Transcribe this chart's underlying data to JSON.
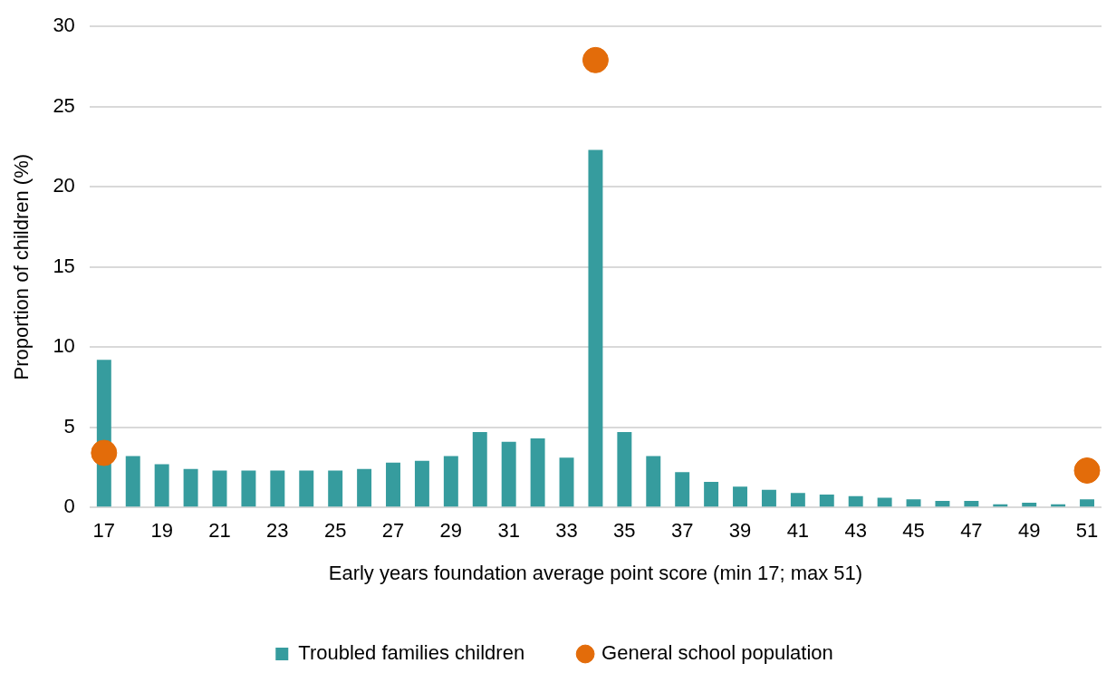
{
  "chart_data": {
    "type": "bar",
    "xlabel": "Early years foundation average point score (min 17; max 51)",
    "ylabel": "Proportion of children (%)",
    "categories": [
      "17",
      null,
      "19",
      null,
      "21",
      null,
      "23",
      null,
      "25",
      null,
      "27",
      null,
      "29",
      null,
      "31",
      null,
      "33",
      null,
      "35",
      null,
      "37",
      null,
      "39",
      null,
      "41",
      null,
      "43",
      null,
      "45",
      null,
      "47",
      null,
      "49",
      null,
      "51"
    ],
    "series": [
      {
        "name": "Troubled families children",
        "color": "#369c9e",
        "values": [
          9.2,
          3.2,
          2.7,
          2.4,
          2.3,
          2.3,
          2.3,
          2.3,
          2.3,
          2.4,
          2.8,
          2.9,
          3.2,
          4.7,
          4.1,
          4.3,
          3.1,
          22.3,
          4.7,
          3.2,
          2.2,
          1.6,
          1.3,
          1.1,
          0.9,
          0.8,
          0.7,
          0.6,
          0.5,
          0.4,
          0.4,
          0.2,
          0.3,
          0.2,
          0.5
        ]
      },
      {
        "name": "General school population",
        "type": "scatter",
        "color": "#e36c0a",
        "values": [
          3.4,
          null,
          null,
          null,
          null,
          null,
          null,
          null,
          null,
          null,
          null,
          null,
          null,
          null,
          null,
          null,
          null,
          27.9,
          null,
          null,
          null,
          null,
          null,
          null,
          null,
          null,
          null,
          null,
          null,
          null,
          null,
          null,
          null,
          null,
          2.3
        ]
      }
    ],
    "ylim": [
      0,
      30
    ],
    "yticks": [
      0,
      5,
      10,
      15,
      20,
      25,
      30
    ],
    "grid": "y",
    "legend": "bottom",
    "marker": "circle"
  }
}
